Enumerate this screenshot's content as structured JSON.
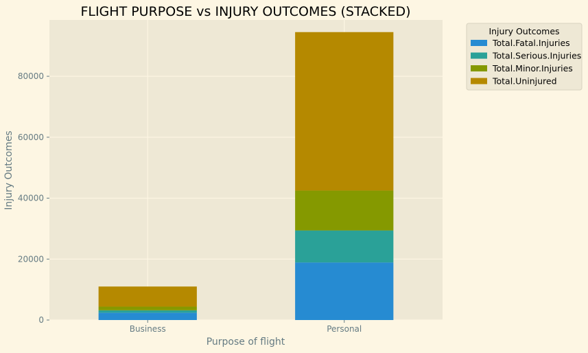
{
  "chart_data": {
    "type": "bar",
    "stacked": true,
    "title": "FLIGHT PURPOSE vs INJURY OUTCOMES (STACKED)",
    "xlabel": "Purpose of flight",
    "ylabel": "Injury Outcomes",
    "categories": [
      "Business",
      "Personal"
    ],
    "ylim": [
      0,
      98500
    ],
    "yticks": [
      0,
      20000,
      40000,
      60000,
      80000
    ],
    "grid": true,
    "legend": {
      "title": "Injury Outcomes",
      "placement": "outside-top-right"
    },
    "series": [
      {
        "name": "Total.Fatal.Injuries",
        "values": [
          2400,
          18900
        ],
        "color": "#268bd2"
      },
      {
        "name": "Total.Serious.Injuries",
        "values": [
          800,
          10500
        ],
        "color": "#2aa198"
      },
      {
        "name": "Total.Minor.Injuries",
        "values": [
          1200,
          13100
        ],
        "color": "#859900"
      },
      {
        "name": "Total.Uninjured",
        "values": [
          6600,
          52000
        ],
        "color": "#b58900"
      }
    ]
  },
  "colors": {
    "page_background": "#fdf6e3",
    "plot_background": "#eee8d5",
    "grid": "#fdf6e3",
    "text": "#657b83"
  }
}
